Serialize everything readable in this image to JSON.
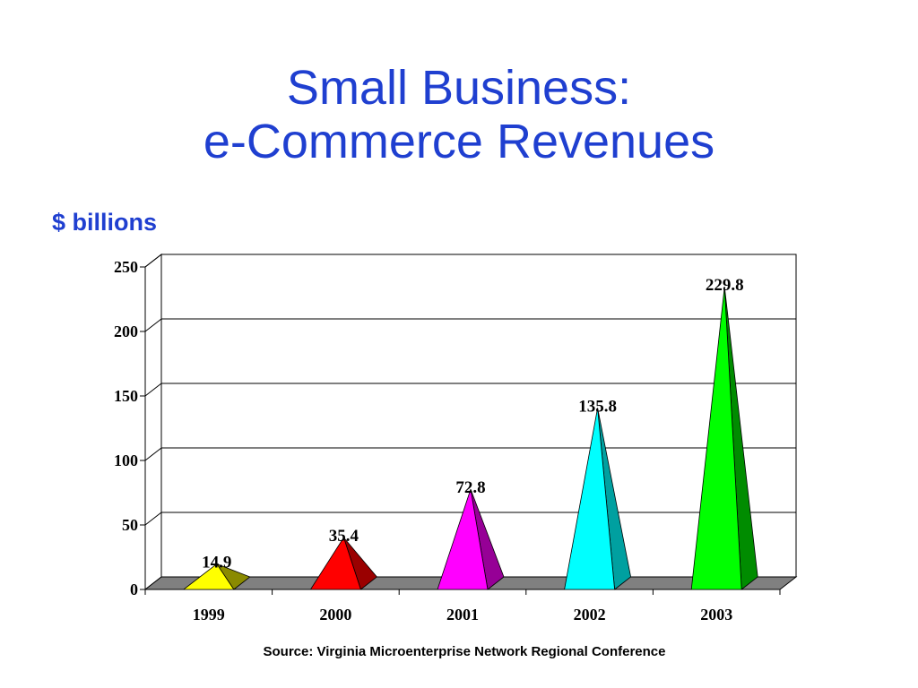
{
  "slide": {
    "title_line1": "Small Business:",
    "title_line2": "e-Commerce Revenues",
    "unit_label": "$ billions",
    "source": "Source: Virginia Microenterprise Network Regional Conference"
  },
  "chart_data": {
    "type": "bar",
    "style": "3d-pyramid",
    "categories": [
      "1999",
      "2000",
      "2001",
      "2002",
      "2003"
    ],
    "values": [
      14.9,
      35.4,
      72.8,
      135.8,
      229.8
    ],
    "data_labels": [
      "14.9",
      "35.4",
      "72.8",
      "135.8",
      "229.8"
    ],
    "ylabel": "$ billions",
    "ylim": [
      0,
      250
    ],
    "yticks": [
      0,
      50,
      100,
      150,
      200,
      250
    ],
    "grid": true,
    "legend": "none",
    "colors": [
      {
        "front": "#ffff00",
        "side": "#8a8a00"
      },
      {
        "front": "#ff0000",
        "side": "#9a0000"
      },
      {
        "front": "#ff00ff",
        "side": "#960096"
      },
      {
        "front": "#00ffff",
        "side": "#00a0a0"
      },
      {
        "front": "#00ff00",
        "side": "#008c00"
      }
    ],
    "floor_color": "#808080",
    "grid_color": "#000000"
  }
}
